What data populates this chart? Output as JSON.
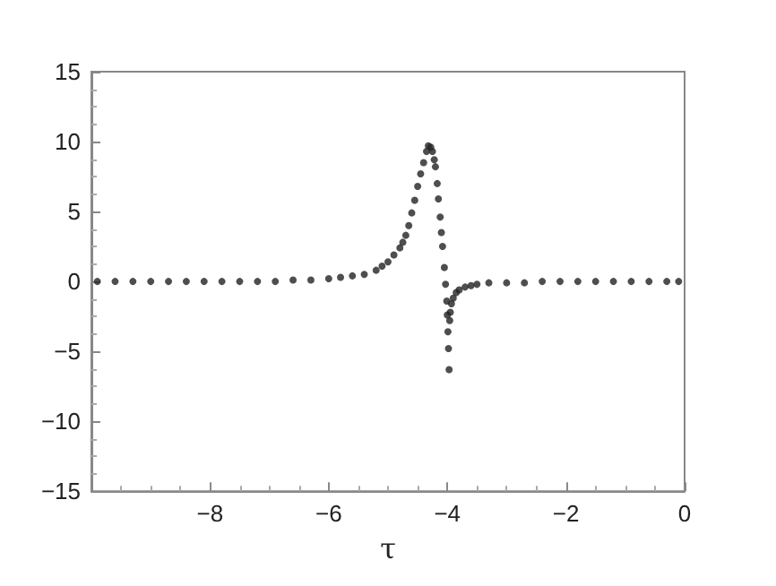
{
  "chart_data": {
    "type": "scatter",
    "xlabel": "τ",
    "marker": "circle",
    "grid": false,
    "xlim": [
      -10,
      0
    ],
    "xticks": [
      -8,
      -6,
      -4,
      -2,
      0
    ],
    "ylim": [
      -15,
      15
    ],
    "yticks": [
      -15,
      -10,
      -5,
      0,
      5,
      10,
      15
    ],
    "series": [
      {
        "color": "#222222",
        "x": [
          -9.9,
          -9.6,
          -9.3,
          -9.0,
          -8.7,
          -8.4,
          -8.1,
          -7.8,
          -7.5,
          -7.2,
          -6.9,
          -6.6,
          -6.3,
          -6.0,
          -5.8,
          -5.6,
          -5.4,
          -5.2,
          -5.1,
          -5.0,
          -4.9,
          -4.8,
          -4.75,
          -4.7,
          -4.65,
          -4.6,
          -4.55,
          -4.5,
          -4.45,
          -4.4,
          -4.35,
          -4.32,
          -4.28,
          -4.25,
          -4.22,
          -4.2,
          -4.17,
          -4.15,
          -4.12,
          -4.1,
          -4.08,
          -4.05,
          -4.03,
          -4.01,
          -4.0,
          -3.99,
          -3.98,
          -3.97,
          -3.96,
          -3.95,
          -3.93,
          -3.9,
          -3.85,
          -3.8,
          -3.7,
          -3.6,
          -3.5,
          -3.3,
          -3.0,
          -2.7,
          -2.4,
          -2.1,
          -1.8,
          -1.5,
          -1.2,
          -0.9,
          -0.6,
          -0.3,
          -0.1
        ],
        "values": [
          0,
          0,
          0,
          0,
          0,
          0,
          0,
          0,
          0,
          0,
          0,
          0.1,
          0.1,
          0.2,
          0.3,
          0.4,
          0.5,
          0.8,
          1.1,
          1.4,
          1.9,
          2.4,
          2.8,
          3.3,
          4.0,
          4.9,
          5.8,
          6.8,
          7.7,
          8.5,
          9.3,
          9.7,
          9.6,
          9.3,
          8.7,
          8.2,
          7.0,
          5.9,
          4.6,
          3.5,
          2.5,
          1.0,
          -0.2,
          -1.4,
          -2.4,
          -3.6,
          -4.8,
          -6.3,
          -2.8,
          -2.2,
          -1.6,
          -1.2,
          -0.8,
          -0.6,
          -0.4,
          -0.3,
          -0.2,
          -0.1,
          -0.1,
          -0.1,
          0,
          0,
          0,
          0,
          0,
          0,
          0,
          0,
          0
        ]
      }
    ]
  }
}
